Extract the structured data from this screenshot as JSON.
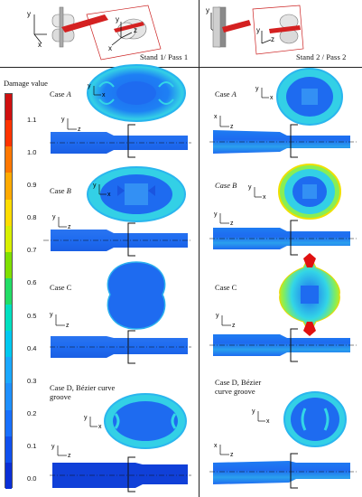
{
  "header": {
    "stand1_label": "Stand 1/ Pass 1",
    "stand2_label": "Stand 2 / Pass 2"
  },
  "legend": {
    "title": "Damage value",
    "ticks": [
      "1.1",
      "1.0",
      "0.9",
      "0.8",
      "0.7",
      "0.6",
      "0.5",
      "0.4",
      "0.3",
      "0.2",
      "0.1",
      "0.0"
    ],
    "colors": [
      "#d01010",
      "#ff3300",
      "#ff7700",
      "#ffaa00",
      "#ffdd00",
      "#d8f000",
      "#7fe000",
      "#22dd66",
      "#00e0c0",
      "#00c8f0",
      "#1aa8ff",
      "#1e90ff",
      "#1870ff",
      "#1050ee",
      "#0a2fd6"
    ]
  },
  "axis_labels": {
    "x": "x",
    "y": "y",
    "z": "z"
  },
  "cases_pass1": [
    {
      "label": "Case ",
      "letter": "A"
    },
    {
      "label": "Case ",
      "letter": "B"
    },
    {
      "label": "Case C",
      "letter": ""
    },
    {
      "label": "Case D, Bézier curve",
      "line2": "groove"
    }
  ],
  "cases_pass2": [
    {
      "label": "Case ",
      "letter": "A"
    },
    {
      "label": "Case B",
      "letter": ""
    },
    {
      "label": "Case C",
      "letter": ""
    },
    {
      "label": "Case D, Bézier",
      "line2": "curve groove"
    }
  ],
  "colors": {
    "base_blue": "#1e6bf0",
    "dark_blue": "#1040d8",
    "cyan": "#33d6e6",
    "light_cyan": "#7ff0e8",
    "green": "#66dd44",
    "yellow": "#eee000",
    "red": "#e01010",
    "roller_red": "#d42020"
  }
}
